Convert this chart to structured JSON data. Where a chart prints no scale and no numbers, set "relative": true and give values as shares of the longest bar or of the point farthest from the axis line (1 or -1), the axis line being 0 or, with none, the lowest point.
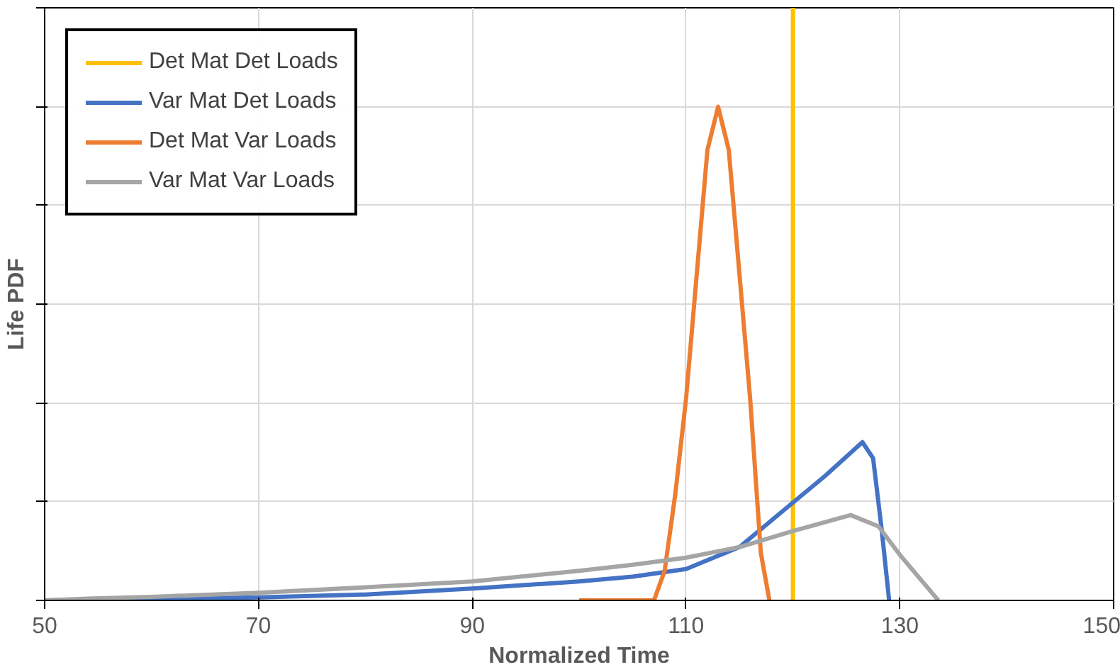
{
  "chart_data": {
    "type": "line",
    "relative": true,
    "xlabel": "Normalized Time",
    "ylabel": "Life PDF",
    "xlim": [
      50,
      150
    ],
    "xticks": [
      50,
      70,
      90,
      110,
      130,
      150
    ],
    "grid": true,
    "legend": "top left",
    "series": [
      {
        "name": "Det Mat Det Loads",
        "color": "#ffc000",
        "x": [
          120,
          120
        ],
        "values": [
          0,
          1
        ]
      },
      {
        "name": "Var Mat Det Loads",
        "color": "#4472c4",
        "x": [
          50,
          60,
          70,
          80,
          90,
          100,
          105,
          110,
          115,
          120,
          123,
          126.5,
          127.5,
          128.3,
          129
        ],
        "values": [
          0,
          0.002,
          0.005,
          0.01,
          0.02,
          0.032,
          0.04,
          0.053,
          0.09,
          0.165,
          0.21,
          0.267,
          0.24,
          0.12,
          0
        ]
      },
      {
        "name": "Det Mat Var Loads",
        "color": "#ed7d31",
        "x": [
          100,
          107,
          108,
          109,
          110,
          111,
          112,
          113,
          114,
          115,
          116,
          117,
          117.8
        ],
        "values": [
          0,
          0,
          0.05,
          0.18,
          0.34,
          0.55,
          0.76,
          0.833,
          0.76,
          0.55,
          0.34,
          0.08,
          0
        ]
      },
      {
        "name": "Var Mat Var Loads",
        "color": "#a5a5a5",
        "x": [
          50,
          54,
          60,
          70,
          80,
          90,
          100,
          105,
          110,
          115,
          120,
          125.4,
          128,
          130,
          133.6
        ],
        "values": [
          0,
          0.003,
          0.006,
          0.013,
          0.022,
          0.032,
          0.05,
          0.06,
          0.072,
          0.09,
          0.117,
          0.144,
          0.125,
          0.077,
          0
        ]
      }
    ]
  }
}
